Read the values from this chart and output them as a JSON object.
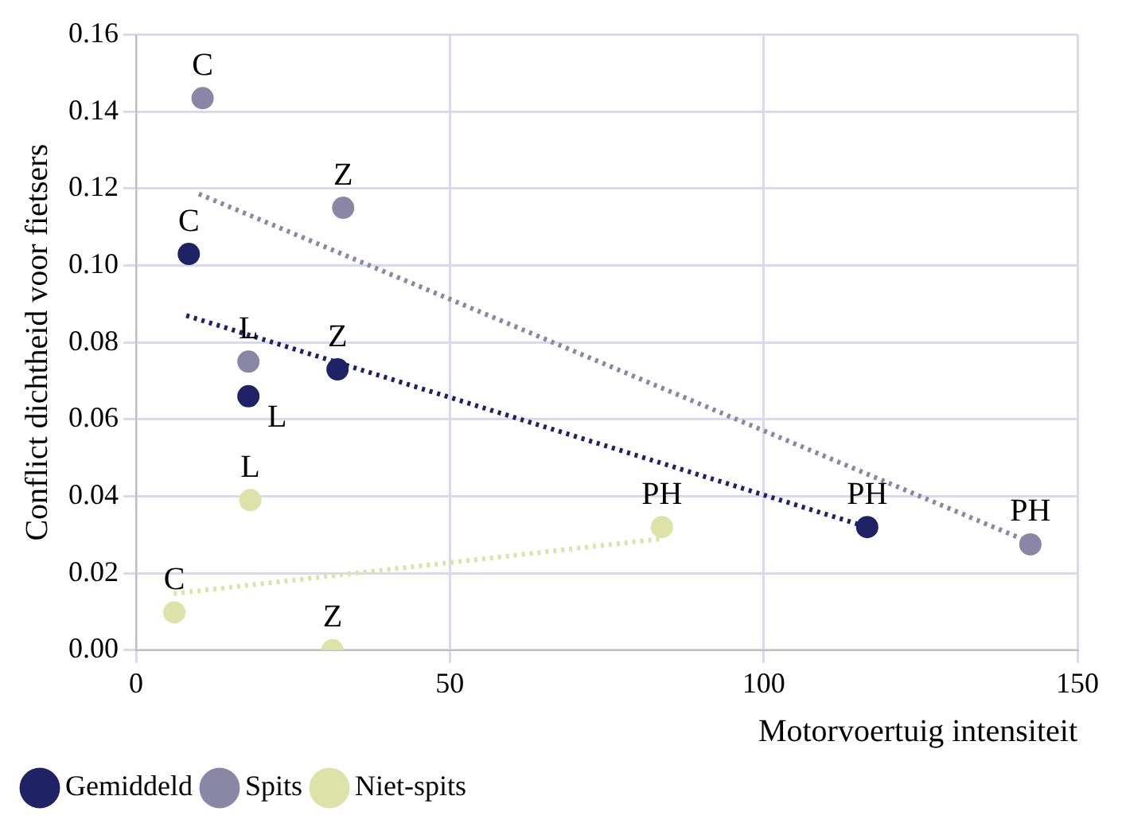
{
  "chart_data": {
    "type": "scatter",
    "xlabel": "Motorvoertuig intensiteit",
    "ylabel": "Conflict dichtheid voor fietsers",
    "xlim": [
      0,
      150
    ],
    "xticks": [
      0,
      50,
      100,
      150
    ],
    "ylim": [
      0,
      0.16
    ],
    "yticks": [
      {
        "value": 0,
        "label": "0.00"
      },
      {
        "value": 0.02,
        "label": "0.02"
      },
      {
        "value": 0.04,
        "label": "0.04"
      },
      {
        "value": 0.06,
        "label": "0.06"
      },
      {
        "value": 0.08,
        "label": "0.08"
      },
      {
        "value": 0.1,
        "label": "0.10"
      },
      {
        "value": 0.12,
        "label": "0.12"
      },
      {
        "value": 0.14,
        "label": "0.14"
      },
      {
        "value": 0.16,
        "label": "0.16"
      }
    ],
    "grid": true,
    "legend": "bottom left",
    "marker": "circle",
    "series": [
      {
        "name": "Gemiddeld",
        "color": "#1f2366",
        "x": [
          8.4,
          17.9,
          32.1,
          116.5
        ],
        "values": [
          0.103,
          0.066,
          0.073,
          0.032
        ]
      },
      {
        "name": "Spits",
        "color": "#8a87a6",
        "x": [
          10.6,
          17.9,
          33,
          142.5
        ],
        "values": [
          0.1435,
          0.075,
          0.115,
          0.0275
        ]
      },
      {
        "name": "Niet-spits",
        "color": "#dde3a8",
        "x": [
          6.1,
          18.2,
          31.3,
          83.8
        ],
        "values": [
          0.0098,
          0.039,
          0,
          0.032
        ]
      },
      {
        "type": "line",
        "color": "#1f2366",
        "line_style": "dotted",
        "marker": "none",
        "x": [
          8,
          116.5
        ],
        "values": [
          0.087,
          0.032
        ]
      },
      {
        "type": "line",
        "color": "#8a87a6",
        "line_style": "dotted",
        "marker": "none",
        "x": [
          10,
          142.5
        ],
        "values": [
          0.1186,
          0.028
        ]
      },
      {
        "type": "line",
        "color": "#dde3a8",
        "line_style": "dotted",
        "marker": "none",
        "x": [
          6,
          84
        ],
        "values": [
          0.0147,
          0.029
        ]
      }
    ],
    "annotations": [
      {
        "text": "C",
        "x": 8.4,
        "y": 0.103
      },
      {
        "text": "L",
        "x": 17.9,
        "y": 0.066
      },
      {
        "text": "Z",
        "x": 32.1,
        "y": 0.073
      },
      {
        "text": "PH",
        "x": 116.5,
        "y": 0.032
      },
      {
        "text": "C",
        "x": 10.6,
        "y": 0.1435
      },
      {
        "text": "L",
        "x": 17.9,
        "y": 0.075
      },
      {
        "text": "Z",
        "x": 33,
        "y": 0.115
      },
      {
        "text": "PH",
        "x": 142.5,
        "y": 0.0275
      },
      {
        "text": "C",
        "x": 6.1,
        "y": 0.0098
      },
      {
        "text": "L",
        "x": 18.2,
        "y": 0.039
      },
      {
        "text": "Z",
        "x": 31.3,
        "y": 0
      },
      {
        "text": "PH",
        "x": 83.8,
        "y": 0.032
      }
    ]
  }
}
